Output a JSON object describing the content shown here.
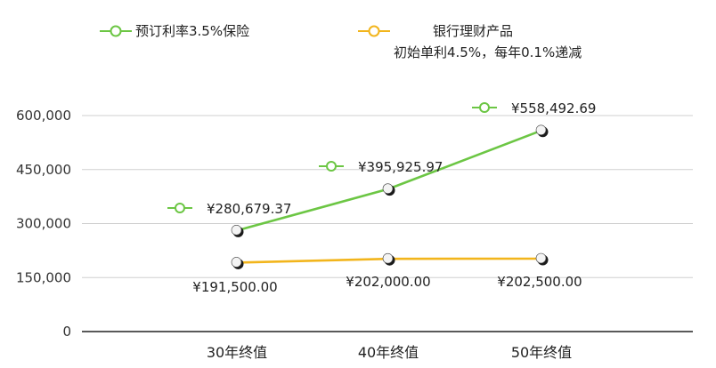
{
  "chart_data": {
    "type": "line",
    "categories": [
      "30年终值",
      "40年终值",
      "50年终值"
    ],
    "ylim": [
      0,
      600000
    ],
    "yticks": [
      0,
      150000,
      300000,
      450000,
      600000
    ],
    "ytick_labels": [
      "0",
      "150,000",
      "300,000",
      "450,000",
      "600,000"
    ],
    "grid": true,
    "legend_position": "top",
    "series": [
      {
        "name": "预订利率3.5%保险",
        "color": "#6cc644",
        "values": [
          280679.37,
          395925.97,
          558492.69
        ],
        "labels": [
          "¥280,679.37",
          "¥395,925.97",
          "¥558,492.69"
        ]
      },
      {
        "name": "银行理财产品",
        "name_line2": "初始单利4.5%，每年0.1%递减",
        "color": "#f2b51c",
        "values": [
          191500,
          202000,
          202500
        ],
        "labels": [
          "¥191,500.00",
          "¥202,000.00",
          "¥202,500.00"
        ]
      }
    ]
  }
}
